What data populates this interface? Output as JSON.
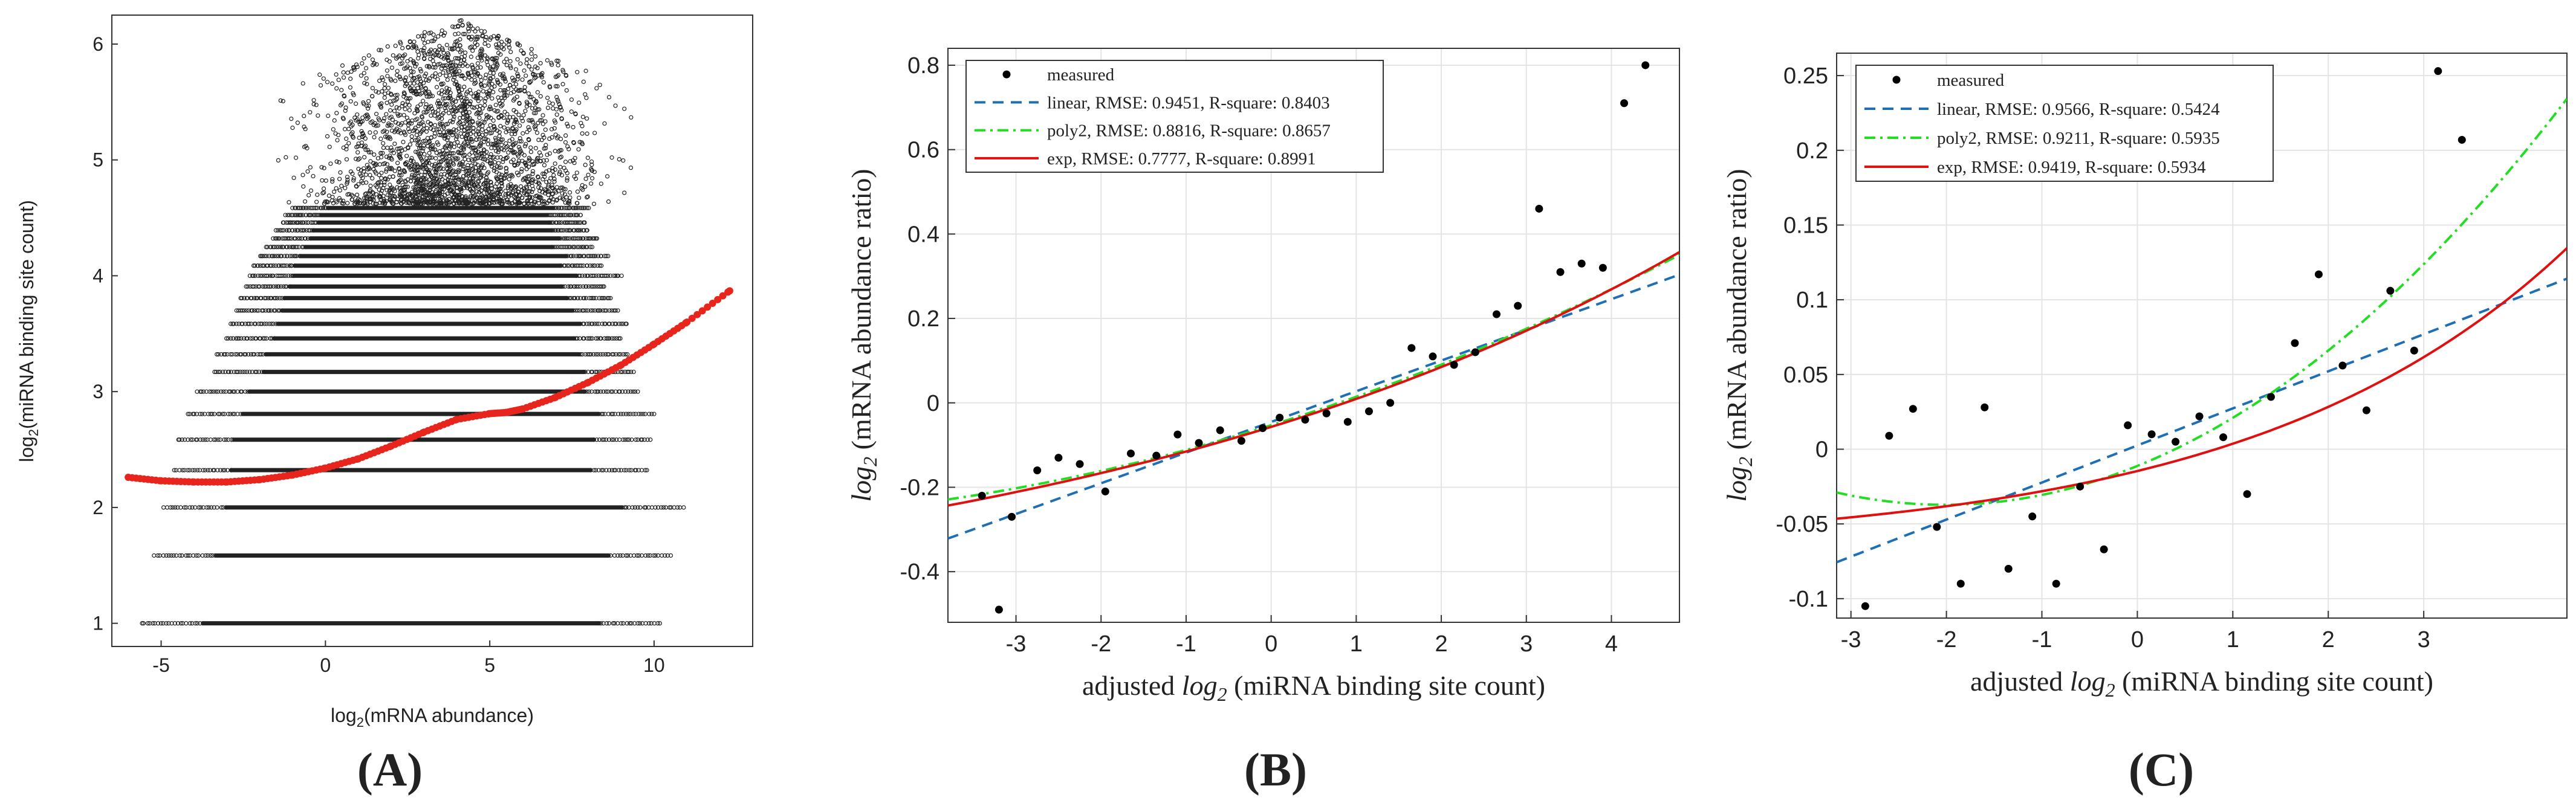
{
  "panels": [
    {
      "label": "(A)",
      "chart_data": {
        "type": "scatter",
        "xlabel_base": "log",
        "xlabel_sub": "2",
        "xlabel_rest": "(mRNA abundance)",
        "ylabel_base": "log",
        "ylabel_sub": "2",
        "ylabel_rest": "(miRNA binding site count)",
        "xlim": [
          -6.5,
          13
        ],
        "ylim": [
          0.8,
          6.25
        ],
        "xticks": [
          -5,
          0,
          5,
          10
        ],
        "yticks": [
          1,
          2,
          3,
          4,
          5,
          6
        ],
        "grid": false,
        "point_color": "#222222",
        "fit_color": "#e8251c",
        "levels": [
          {
            "y": 1.0,
            "x": [
              -5.6,
              10.2
            ]
          },
          {
            "y": 1.585,
            "x": [
              -5.2,
              10.5
            ]
          },
          {
            "y": 2.0,
            "x": [
              -4.9,
              10.9
            ]
          },
          {
            "y": 2.322,
            "x": [
              -4.6,
              9.8
            ]
          },
          {
            "y": 2.585,
            "x": [
              -4.5,
              9.9
            ]
          },
          {
            "y": 2.807,
            "x": [
              -4.2,
              10.0
            ]
          },
          {
            "y": 3.0,
            "x": [
              -3.9,
              9.5
            ]
          },
          {
            "y": 3.17,
            "x": [
              -3.4,
              9.4
            ]
          },
          {
            "y": 3.322,
            "x": [
              -3.3,
              9.2
            ]
          },
          {
            "y": 3.459,
            "x": [
              -3.0,
              9.0
            ]
          },
          {
            "y": 3.585,
            "x": [
              -2.9,
              9.2
            ]
          },
          {
            "y": 3.7,
            "x": [
              -2.7,
              8.9
            ]
          },
          {
            "y": 3.807,
            "x": [
              -2.6,
              8.7
            ]
          },
          {
            "y": 3.907,
            "x": [
              -2.4,
              8.5
            ]
          },
          {
            "y": 4.0,
            "x": [
              -2.3,
              9.0
            ]
          },
          {
            "y": 4.087,
            "x": [
              -2.2,
              8.4
            ]
          },
          {
            "y": 4.17,
            "x": [
              -2.0,
              8.6
            ]
          },
          {
            "y": 4.248,
            "x": [
              -1.8,
              8.1
            ]
          },
          {
            "y": 4.322,
            "x": [
              -1.6,
              8.3
            ]
          },
          {
            "y": 4.392,
            "x": [
              -1.5,
              8.0
            ]
          },
          {
            "y": 4.459,
            "x": [
              -1.3,
              7.9
            ]
          },
          {
            "y": 4.524,
            "x": [
              -1.2,
              7.8
            ]
          },
          {
            "y": 4.585,
            "x": [
              -1.0,
              8.0
            ]
          }
        ],
        "fit_curve": {
          "x": [
            -6.0,
            -5.0,
            -4.0,
            -3.0,
            -2.0,
            -1.0,
            0.0,
            1.0,
            2.0,
            3.0,
            4.0,
            5.0,
            5.5,
            6.0,
            7.0,
            8.0,
            9.0,
            10.0,
            11.0,
            12.3
          ],
          "y": [
            2.26,
            2.23,
            2.22,
            2.22,
            2.24,
            2.28,
            2.34,
            2.42,
            2.53,
            2.65,
            2.76,
            2.81,
            2.82,
            2.85,
            2.95,
            3.08,
            3.23,
            3.41,
            3.6,
            3.87
          ]
        }
      }
    },
    {
      "label": "(B)",
      "chart_data": {
        "type": "scatter",
        "xlabel_pre": "adjusted ",
        "xlabel_base": "log",
        "xlabel_sub": "2",
        "xlabel_rest": " (miRNA binding site count)",
        "ylabel_base": "log",
        "ylabel_sub": "2",
        "ylabel_rest": " (mRNA abundance ratio)",
        "xlim": [
          -3.8,
          4.8
        ],
        "ylim": [
          -0.52,
          0.84
        ],
        "xticks": [
          -3,
          -2,
          -1,
          0,
          1,
          2,
          3,
          4
        ],
        "yticks": [
          -0.4,
          -0.2,
          0,
          0.2,
          0.4,
          0.6,
          0.8
        ],
        "ytick_labels": [
          "-0.4",
          "-0.2",
          "0",
          "0.2",
          "0.4",
          "0.6",
          "0.8"
        ],
        "grid": true,
        "legend": [
          {
            "text": "measured",
            "style": "dot",
            "color": "#000000"
          },
          {
            "text": "linear, RMSE: 0.9451, R-square: 0.8403",
            "style": "dashed",
            "color": "#1f6fb5"
          },
          {
            "text": "poly2, RMSE: 0.8816, R-square: 0.8657",
            "style": "dashdot",
            "color": "#22dd22"
          },
          {
            "text": "exp, RMSE: 0.7777, R-square: 0.8991",
            "style": "solid",
            "color": "#e01010"
          }
        ],
        "measured": {
          "x": [
            -3.4,
            -3.2,
            -3.05,
            -2.75,
            -2.5,
            -2.25,
            -1.95,
            -1.65,
            -1.35,
            -1.1,
            -0.85,
            -0.6,
            -0.35,
            -0.1,
            0.1,
            0.4,
            0.65,
            0.9,
            1.15,
            1.4,
            1.65,
            1.9,
            2.15,
            2.4,
            2.65,
            2.9,
            3.15,
            3.4,
            3.65,
            3.9,
            4.15,
            4.4
          ],
          "y": [
            -0.22,
            -0.49,
            -0.27,
            -0.16,
            -0.13,
            -0.145,
            -0.21,
            -0.12,
            -0.125,
            -0.075,
            -0.095,
            -0.065,
            -0.09,
            -0.06,
            -0.035,
            -0.04,
            -0.025,
            -0.045,
            -0.02,
            0.0,
            0.13,
            0.11,
            0.09,
            0.12,
            0.21,
            0.23,
            0.46,
            0.31,
            0.33,
            0.32,
            0.71,
            0.8
          ]
        },
        "fits": {
          "linear": {
            "type": "line",
            "a": -0.0452,
            "b": 0.0727
          },
          "poly2": {
            "type": "quad",
            "a": -0.053,
            "b": 0.063,
            "c": 0.0044
          },
          "exp": {
            "type": "exp",
            "a": -0.535,
            "b": 0.478,
            "k": 0.13
          }
        }
      }
    },
    {
      "label": "(C)",
      "chart_data": {
        "type": "scatter",
        "xlabel_pre": "adjusted ",
        "xlabel_base": "log",
        "xlabel_sub": "2",
        "xlabel_rest": " (miRNA binding site count)",
        "ylabel_base": "log",
        "ylabel_sub": "2",
        "ylabel_rest": " (mRNA abundance ratio)",
        "xlim": [
          -3.15,
          4.5
        ],
        "ylim": [
          -0.113,
          0.265
        ],
        "xticks": [
          -3,
          -2,
          -1,
          0,
          1,
          2,
          3
        ],
        "yticks": [
          -0.1,
          -0.05,
          0,
          0.05,
          0.1,
          0.15,
          0.2,
          0.25
        ],
        "ytick_labels": [
          "-0.1",
          "-0.05",
          "0",
          "0.05",
          "0.1",
          "0.15",
          "0.2",
          "0.25"
        ],
        "grid": true,
        "legend": [
          {
            "text": "measured",
            "style": "dot",
            "color": "#000000"
          },
          {
            "text": "linear, RMSE: 0.9566, R-square: 0.5424",
            "style": "dashed",
            "color": "#1f6fb5"
          },
          {
            "text": "poly2, RMSE: 0.9211, R-square: 0.5935",
            "style": "dashdot",
            "color": "#22dd22"
          },
          {
            "text": "exp, RMSE: 0.9419, R-square: 0.5934",
            "style": "solid",
            "color": "#e01010"
          }
        ],
        "measured": {
          "x": [
            -2.85,
            -2.6,
            -2.35,
            -2.1,
            -1.85,
            -1.6,
            -1.35,
            -1.1,
            -0.85,
            -0.6,
            -0.35,
            -0.1,
            0.15,
            0.4,
            0.65,
            0.9,
            1.15,
            1.4,
            1.65,
            1.9,
            2.15,
            2.4,
            2.65,
            2.9,
            3.15,
            3.4
          ],
          "y": [
            -0.105,
            0.009,
            0.027,
            -0.052,
            -0.09,
            0.028,
            -0.08,
            -0.045,
            -0.09,
            -0.025,
            -0.067,
            0.016,
            0.01,
            0.005,
            0.022,
            0.008,
            -0.03,
            0.035,
            0.071,
            0.117,
            0.056,
            0.026,
            0.106,
            0.066,
            0.253,
            0.207
          ]
        },
        "fits": {
          "linear": {
            "type": "line",
            "a": 0.0025,
            "b": 0.0248
          },
          "poly2": {
            "type": "quad",
            "a": -0.0112,
            "b": 0.0258,
            "c": 0.0064
          },
          "exp": {
            "type": "exp",
            "a": -0.0668,
            "b": 0.0522,
            "k": 0.3
          }
        }
      }
    }
  ]
}
